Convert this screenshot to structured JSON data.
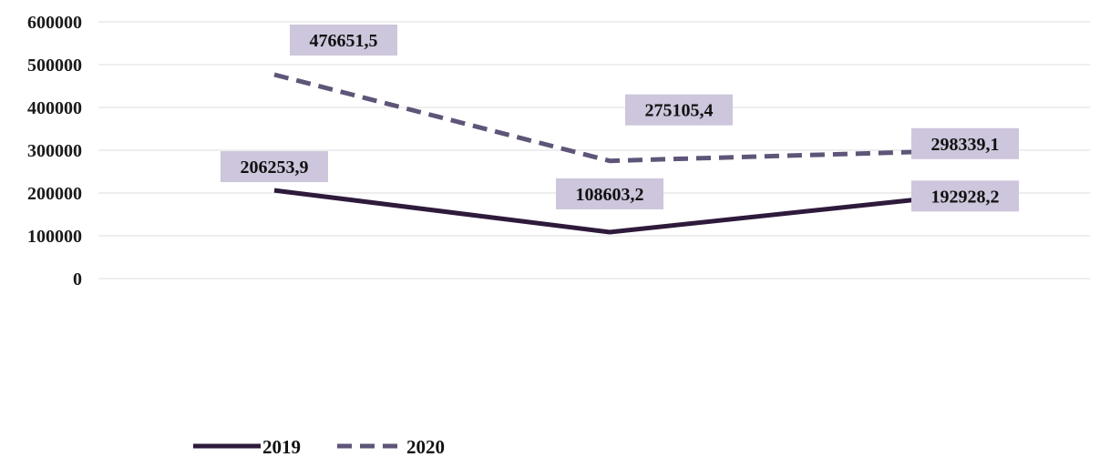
{
  "chart_data": {
    "type": "line",
    "categories": [
      "",
      "",
      ""
    ],
    "ylim": [
      0,
      600000
    ],
    "yticks": [
      "0",
      "100000",
      "200000",
      "300000",
      "400000",
      "500000",
      "600000"
    ],
    "grid": true,
    "legend_position": "bottom-left",
    "series": [
      {
        "name": "2019",
        "values": [
          206253.9,
          108603.2,
          192928.2
        ],
        "labels": [
          "206253,9",
          "108603,2",
          "192928,2"
        ],
        "line_style": "solid",
        "color": "#2e1a3b"
      },
      {
        "name": "2020",
        "values": [
          476651.5,
          275105.4,
          298339.1
        ],
        "labels": [
          "476651,5",
          "275105,4",
          "298339,1"
        ],
        "line_style": "dashed",
        "color": "#5e5578"
      }
    ],
    "label_box_color": "#cdc6dc",
    "grid_color": "#dcdcdc"
  }
}
